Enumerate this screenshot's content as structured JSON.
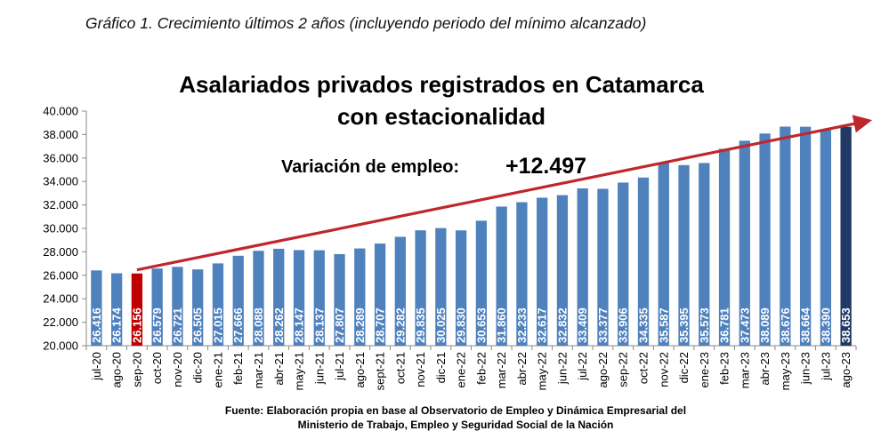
{
  "caption": "Gráfico 1. Crecimiento últimos 2 años (incluyendo periodo del mínimo alcanzado)",
  "chart_data": {
    "type": "bar",
    "title_lines": [
      "Asalariados privados registrados en Catamarca",
      "con estacionalidad"
    ],
    "annotation_label": "Variación de empleo:",
    "annotation_value": "+12.497",
    "ylim": [
      20000,
      40000
    ],
    "yticks": [
      "20.000",
      "22.000",
      "24.000",
      "26.000",
      "28.000",
      "30.000",
      "32.000",
      "34.000",
      "36.000",
      "38.000",
      "40.000"
    ],
    "categories": [
      "jul-20",
      "ago-20",
      "sep-20",
      "oct-20",
      "nov-20",
      "dic-20",
      "ene-21",
      "feb-21",
      "mar-21",
      "abr-21",
      "may-21",
      "jun-21",
      "jul-21",
      "ago-21",
      "sept-21",
      "oct-21",
      "nov-21",
      "dic-21",
      "ene-22",
      "feb-22",
      "mar-22",
      "abr-22",
      "may-22",
      "jun-22",
      "jul-22",
      "ago-22",
      "sep-22",
      "oct-22",
      "nov-22",
      "dic-22",
      "ene-23",
      "feb-23",
      "mar-23",
      "abr-23",
      "may-23",
      "jun-23",
      "jul-23",
      "ago-23"
    ],
    "values": [
      26416,
      26174,
      26156,
      26579,
      26721,
      26505,
      27015,
      27666,
      28088,
      28262,
      28147,
      28137,
      27807,
      28289,
      28707,
      29282,
      29835,
      30025,
      29830,
      30653,
      31860,
      32233,
      32617,
      32832,
      33409,
      33377,
      33906,
      34335,
      35587,
      35395,
      35573,
      36781,
      37473,
      38089,
      38676,
      38664,
      38390,
      38653
    ],
    "value_labels": [
      "26.416",
      "26.174",
      "26.156",
      "26.579",
      "26.721",
      "26.505",
      "27.015",
      "27.666",
      "28.088",
      "28.262",
      "28.147",
      "28.137",
      "27.807",
      "28.289",
      "28.707",
      "29.282",
      "29.835",
      "30.025",
      "29.830",
      "30.653",
      "31.860",
      "32.233",
      "32.617",
      "32.832",
      "33.409",
      "33.377",
      "33.906",
      "34.335",
      "35.587",
      "35.395",
      "35.573",
      "36.781",
      "37.473",
      "38.089",
      "38.676",
      "38.664",
      "38.390",
      "38.653"
    ],
    "colors": {
      "default": "#4F81BD",
      "minimum": "#C00000",
      "last": "#1F3864",
      "arrow": "#C0272D"
    },
    "highlight": {
      "minimum_index": 2,
      "last_index": 37
    },
    "grid": false,
    "legend": "none",
    "source_lines": [
      "Fuente: Elaboración propia en base al Observatorio de Empleo y Dinámica Empresarial del",
      "Ministerio de Trabajo, Empleo y Seguridad Social de la Nación"
    ]
  }
}
